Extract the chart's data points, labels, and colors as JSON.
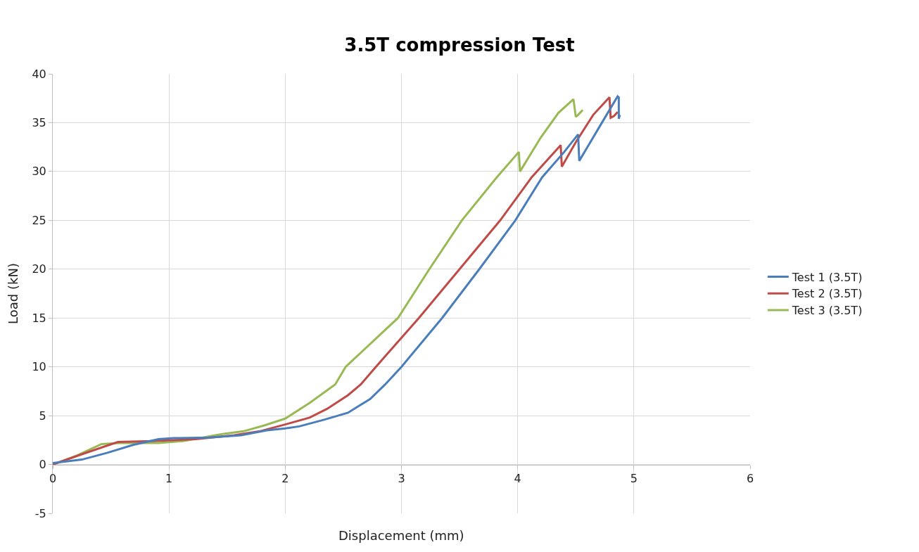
{
  "chart_data": {
    "type": "line",
    "title": "3.5T compression Test",
    "xlabel": "Displacement (mm)",
    "ylabel": "Load (kN)",
    "xlim": [
      0,
      6
    ],
    "xticks": [
      0,
      1,
      2,
      3,
      4,
      5,
      6
    ],
    "ylim": [
      -5,
      40
    ],
    "yticks": [
      -5,
      0,
      5,
      10,
      15,
      20,
      25,
      30,
      35,
      40
    ],
    "grid": true,
    "legend": "right",
    "marker": "none",
    "line_style": "solid",
    "series": [
      {
        "name": "Test 1 (3.5T)",
        "color": "#4a7ebb",
        "x": [
          0,
          0.25,
          0.47,
          0.69,
          0.91,
          1.04,
          1.34,
          1.62,
          1.84,
          2.0,
          2.12,
          2.34,
          2.54,
          2.73,
          2.86,
          3.0,
          3.35,
          3.67,
          3.98,
          4.21,
          4.4,
          4.52,
          4.53,
          4.6,
          4.7,
          4.8,
          4.86,
          4.87,
          4.87,
          4.88
        ],
        "values": [
          0.15,
          0.5,
          1.2,
          2.0,
          2.6,
          2.7,
          2.75,
          3.0,
          3.5,
          3.7,
          3.9,
          4.6,
          5.3,
          6.7,
          8.2,
          10,
          15,
          20,
          25,
          29.4,
          32,
          33.8,
          31.1,
          32.5,
          34.5,
          36.5,
          37.7,
          37.6,
          35.4,
          35.8
        ]
      },
      {
        "name": "Test 2 (3.5T)",
        "color": "#be4b48",
        "x": [
          0,
          0.25,
          0.56,
          0.86,
          1.23,
          1.56,
          1.78,
          2.0,
          2.21,
          2.36,
          2.54,
          2.65,
          2.78,
          3.15,
          3.5,
          3.85,
          4.12,
          4.37,
          4.38,
          4.5,
          4.65,
          4.79,
          4.8,
          4.83,
          4.86
        ],
        "values": [
          0,
          1.05,
          2.3,
          2.4,
          2.6,
          3.0,
          3.4,
          4.1,
          4.8,
          5.7,
          7.1,
          8.2,
          10,
          15,
          20,
          25,
          29.4,
          32.7,
          30.5,
          33,
          35.8,
          37.6,
          35.5,
          35.7,
          36.1
        ]
      },
      {
        "name": "Test 3 (3.5T)",
        "color": "#98b954",
        "x": [
          0,
          0.21,
          0.42,
          0.58,
          0.91,
          1.12,
          1.45,
          1.64,
          1.82,
          2.0,
          2.21,
          2.43,
          2.52,
          2.97,
          3.24,
          3.52,
          3.82,
          4.01,
          4.02,
          4.2,
          4.35,
          4.48,
          4.5,
          4.52,
          4.56
        ],
        "values": [
          0,
          0.93,
          2.1,
          2.2,
          2.2,
          2.4,
          3.1,
          3.4,
          4.0,
          4.7,
          6.3,
          8.2,
          10,
          15,
          20,
          25,
          29.4,
          32.0,
          30.0,
          33.5,
          36.0,
          37.4,
          35.6,
          35.8,
          36.3
        ]
      }
    ]
  }
}
